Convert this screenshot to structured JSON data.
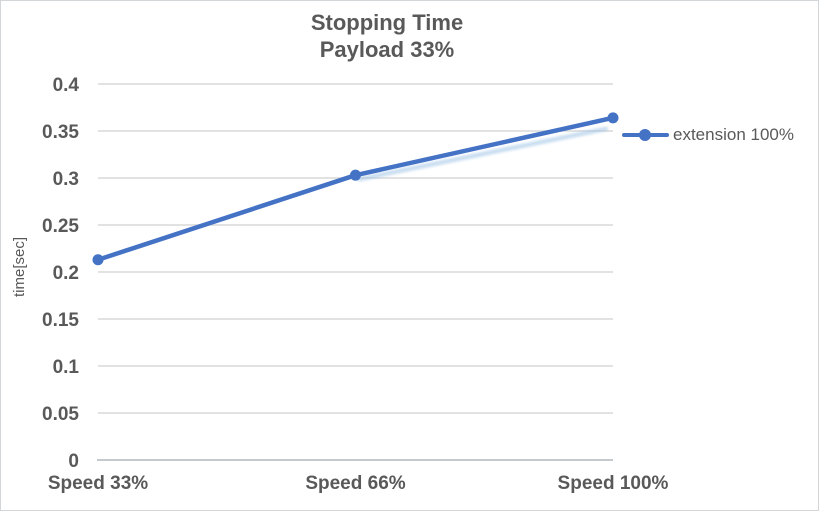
{
  "chart_data": {
    "type": "line",
    "title_line1": "Stopping Time",
    "title_line2": "Payload 33%",
    "ylabel": "time[sec]",
    "xlabel": "",
    "categories": [
      "Speed 33%",
      "Speed 66%",
      "Speed 100%"
    ],
    "series": [
      {
        "name": "extension 100%",
        "values": [
          0.213,
          0.303,
          0.364
        ]
      }
    ],
    "ylim": [
      0,
      0.4
    ],
    "ytick_step": 0.05,
    "ytick_labels": [
      "0",
      "0.05",
      "0.1",
      "0.15",
      "0.2",
      "0.25",
      "0.3",
      "0.35",
      "0.4"
    ],
    "grid": true,
    "legend_position": "right",
    "marker": "circle",
    "colors": {
      "line": "#4472C4",
      "line_shadow": "#9DC3E6",
      "grid": "#D9D9D9",
      "axis": "#C6C9CC",
      "text": "#595959",
      "border": "#D3D6D8"
    }
  }
}
